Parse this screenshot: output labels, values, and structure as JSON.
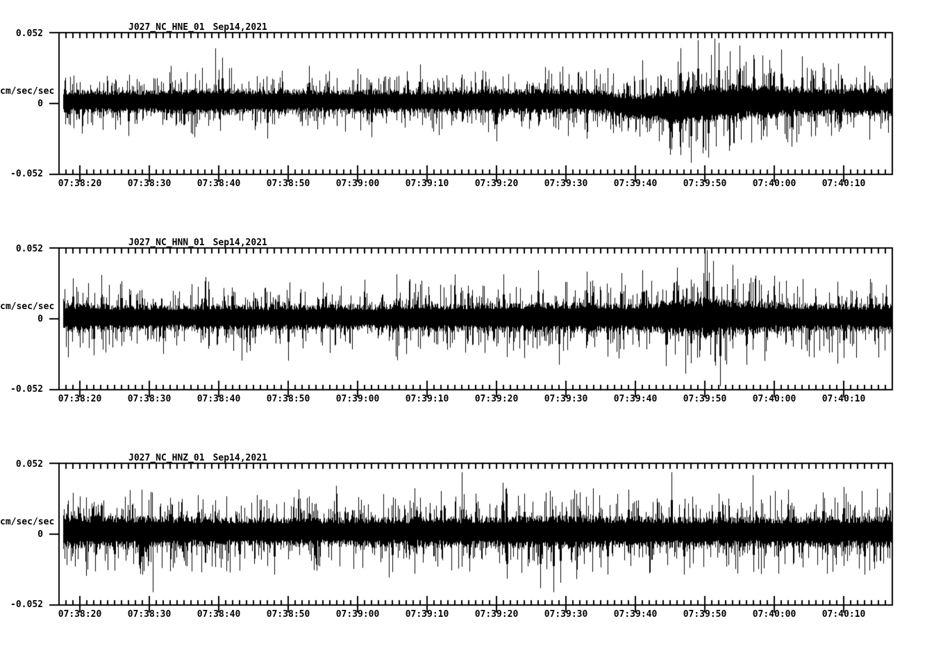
{
  "figure": {
    "background": "#ffffff",
    "foreground": "#000000"
  },
  "chart_data": [
    {
      "type": "line",
      "title_station": "J027_NC_HNE_01",
      "title_date": "Sep14,2021",
      "ylabel": "cm/sec/sec",
      "ylim": [
        -0.052,
        0.052
      ],
      "y_tick_labels": [
        "0.052",
        "0",
        "-0.052"
      ],
      "x_major_tick_labels": [
        "07:38:20",
        "07:38:30",
        "07:38:40",
        "07:38:50",
        "07:39:00",
        "07:39:10",
        "07:39:20",
        "07:39:30",
        "07:39:40",
        "07:39:50",
        "07:40:00",
        "07:40:10"
      ],
      "x_axis": {
        "duration_s": 120,
        "first_major_tick_offset_s": 3,
        "major_tick_interval_s": 10,
        "minor_tick_interval_s": 1
      },
      "trace_estimate": {
        "noise_seed": 101,
        "mean_cm_s2": [
          [
            0,
            0.0015
          ],
          [
            78,
            0.0015
          ],
          [
            82,
            -0.0025
          ],
          [
            88,
            -0.003
          ],
          [
            93,
            0.0
          ],
          [
            100,
            0.0015
          ],
          [
            120,
            0.0012
          ]
        ],
        "envelope_halfwidth_cm_s2": [
          [
            0,
            0.0088
          ],
          [
            15,
            0.0088
          ],
          [
            22,
            0.0105
          ],
          [
            28,
            0.0092
          ],
          [
            40,
            0.0088
          ],
          [
            55,
            0.0092
          ],
          [
            70,
            0.0095
          ],
          [
            80,
            0.0092
          ],
          [
            86,
            0.011
          ],
          [
            90,
            0.0145
          ],
          [
            96,
            0.0145
          ],
          [
            102,
            0.0125
          ],
          [
            106,
            0.0115
          ],
          [
            112,
            0.0105
          ],
          [
            120,
            0.0105
          ]
        ],
        "peak_spikes_cm_s2": [
          [
            10,
            -0.024
          ],
          [
            23.5,
            0.034
          ],
          [
            30,
            -0.026
          ],
          [
            36,
            0.028
          ],
          [
            45,
            -0.025
          ],
          [
            52,
            0.029
          ],
          [
            63,
            -0.028
          ],
          [
            70,
            0.027
          ],
          [
            76,
            -0.026
          ],
          [
            84,
            0.032
          ],
          [
            88,
            -0.038
          ],
          [
            89.5,
            0.041
          ],
          [
            91,
            -0.044
          ],
          [
            92,
            0.047
          ],
          [
            93.5,
            -0.04
          ],
          [
            95,
            0.045
          ],
          [
            96.5,
            -0.035
          ],
          [
            98,
            0.043
          ],
          [
            100,
            0.036
          ],
          [
            104,
            0.04
          ],
          [
            105.5,
            -0.032
          ],
          [
            107,
            0.035
          ],
          [
            110,
            0.03
          ],
          [
            116,
            0.028
          ]
        ]
      }
    },
    {
      "type": "line",
      "title_station": "J027_NC_HNN_01",
      "title_date": "Sep14,2021",
      "ylabel": "cm/sec/sec",
      "ylim": [
        -0.052,
        0.052
      ],
      "y_tick_labels": [
        "0.052",
        "0",
        "-0.052"
      ],
      "x_major_tick_labels": [
        "07:38:20",
        "07:38:30",
        "07:38:40",
        "07:38:50",
        "07:39:00",
        "07:39:10",
        "07:39:20",
        "07:39:30",
        "07:39:40",
        "07:39:50",
        "07:40:00",
        "07:40:10"
      ],
      "x_axis": {
        "duration_s": 120,
        "first_major_tick_offset_s": 3,
        "major_tick_interval_s": 10,
        "minor_tick_interval_s": 1
      },
      "trace_estimate": {
        "noise_seed": 202,
        "mean_cm_s2": [
          [
            0,
            0.001
          ],
          [
            120,
            0.001
          ]
        ],
        "envelope_halfwidth_cm_s2": [
          [
            0,
            0.0115
          ],
          [
            6,
            0.0105
          ],
          [
            18,
            0.0098
          ],
          [
            30,
            0.0098
          ],
          [
            45,
            0.01
          ],
          [
            58,
            0.0105
          ],
          [
            68,
            0.0115
          ],
          [
            76,
            0.0115
          ],
          [
            83,
            0.0105
          ],
          [
            87,
            0.0125
          ],
          [
            92,
            0.0155
          ],
          [
            97,
            0.0135
          ],
          [
            103,
            0.0115
          ],
          [
            110,
            0.0105
          ],
          [
            120,
            0.0105
          ]
        ],
        "peak_spikes_cm_s2": [
          [
            2,
            0.03
          ],
          [
            5,
            -0.027
          ],
          [
            9,
            0.028
          ],
          [
            15,
            -0.026
          ],
          [
            21,
            0.028
          ],
          [
            27,
            -0.025
          ],
          [
            33,
            -0.031
          ],
          [
            38,
            0.027
          ],
          [
            44,
            0.029
          ],
          [
            50,
            -0.026
          ],
          [
            57,
            0.033
          ],
          [
            64,
            0.033
          ],
          [
            67,
            -0.029
          ],
          [
            69,
            0.036
          ],
          [
            72,
            -0.034
          ],
          [
            76,
            0.035
          ],
          [
            79,
            -0.028
          ],
          [
            81,
            0.034
          ],
          [
            84,
            0.036
          ],
          [
            87.4,
            -0.035
          ],
          [
            89,
            0.038
          ],
          [
            91,
            -0.033
          ],
          [
            93.3,
            0.051
          ],
          [
            94.2,
            0.043
          ],
          [
            95.2,
            -0.05
          ],
          [
            97,
            0.04
          ],
          [
            99,
            -0.034
          ],
          [
            103,
            0.032
          ],
          [
            108,
            -0.028
          ],
          [
            113,
            -0.029
          ],
          [
            117,
            0.027
          ]
        ]
      }
    },
    {
      "type": "line",
      "title_station": "J027_NC_HNZ_01",
      "title_date": "Sep14,2021",
      "ylabel": "cm/sec/sec",
      "ylim": [
        -0.052,
        0.052
      ],
      "y_tick_labels": [
        "0.052",
        "0",
        "-0.052"
      ],
      "x_major_tick_labels": [
        "07:38:20",
        "07:38:30",
        "07:38:40",
        "07:38:50",
        "07:39:00",
        "07:39:10",
        "07:39:20",
        "07:39:30",
        "07:39:40",
        "07:39:50",
        "07:40:00",
        "07:40:10"
      ],
      "x_axis": {
        "duration_s": 120,
        "first_major_tick_offset_s": 3,
        "major_tick_interval_s": 10,
        "minor_tick_interval_s": 1
      },
      "trace_estimate": {
        "noise_seed": 303,
        "mean_cm_s2": [
          [
            0,
            0.0018
          ],
          [
            120,
            0.0015
          ]
        ],
        "envelope_halfwidth_cm_s2": [
          [
            0,
            0.0125
          ],
          [
            10,
            0.0125
          ],
          [
            25,
            0.011
          ],
          [
            40,
            0.011
          ],
          [
            55,
            0.0115
          ],
          [
            65,
            0.0125
          ],
          [
            75,
            0.0125
          ],
          [
            85,
            0.0115
          ],
          [
            95,
            0.0115
          ],
          [
            105,
            0.0115
          ],
          [
            120,
            0.0125
          ]
        ],
        "peak_spikes_cm_s2": [
          [
            3,
            0.028
          ],
          [
            8,
            -0.027
          ],
          [
            12,
            -0.03
          ],
          [
            16,
            0.027
          ],
          [
            20,
            0.029
          ],
          [
            26,
            -0.027
          ],
          [
            31,
            -0.03
          ],
          [
            36,
            0.028
          ],
          [
            40,
            0.03
          ],
          [
            48,
            -0.028
          ],
          [
            52,
            0.027
          ],
          [
            55,
            0.032
          ],
          [
            60,
            0.03
          ],
          [
            64.5,
            -0.033
          ],
          [
            67,
            0.03
          ],
          [
            69.3,
            -0.04
          ],
          [
            71.2,
            -0.043
          ],
          [
            72.2,
            -0.036
          ],
          [
            75,
            0.031
          ],
          [
            79,
            -0.03
          ],
          [
            82,
            0.033
          ],
          [
            85,
            -0.029
          ],
          [
            88.2,
            0.046
          ],
          [
            90,
            -0.03
          ],
          [
            95,
            0.03
          ],
          [
            100,
            -0.028
          ],
          [
            105,
            0.033
          ],
          [
            110,
            0.031
          ],
          [
            113,
            0.035
          ],
          [
            116,
            -0.03
          ]
        ]
      }
    }
  ]
}
